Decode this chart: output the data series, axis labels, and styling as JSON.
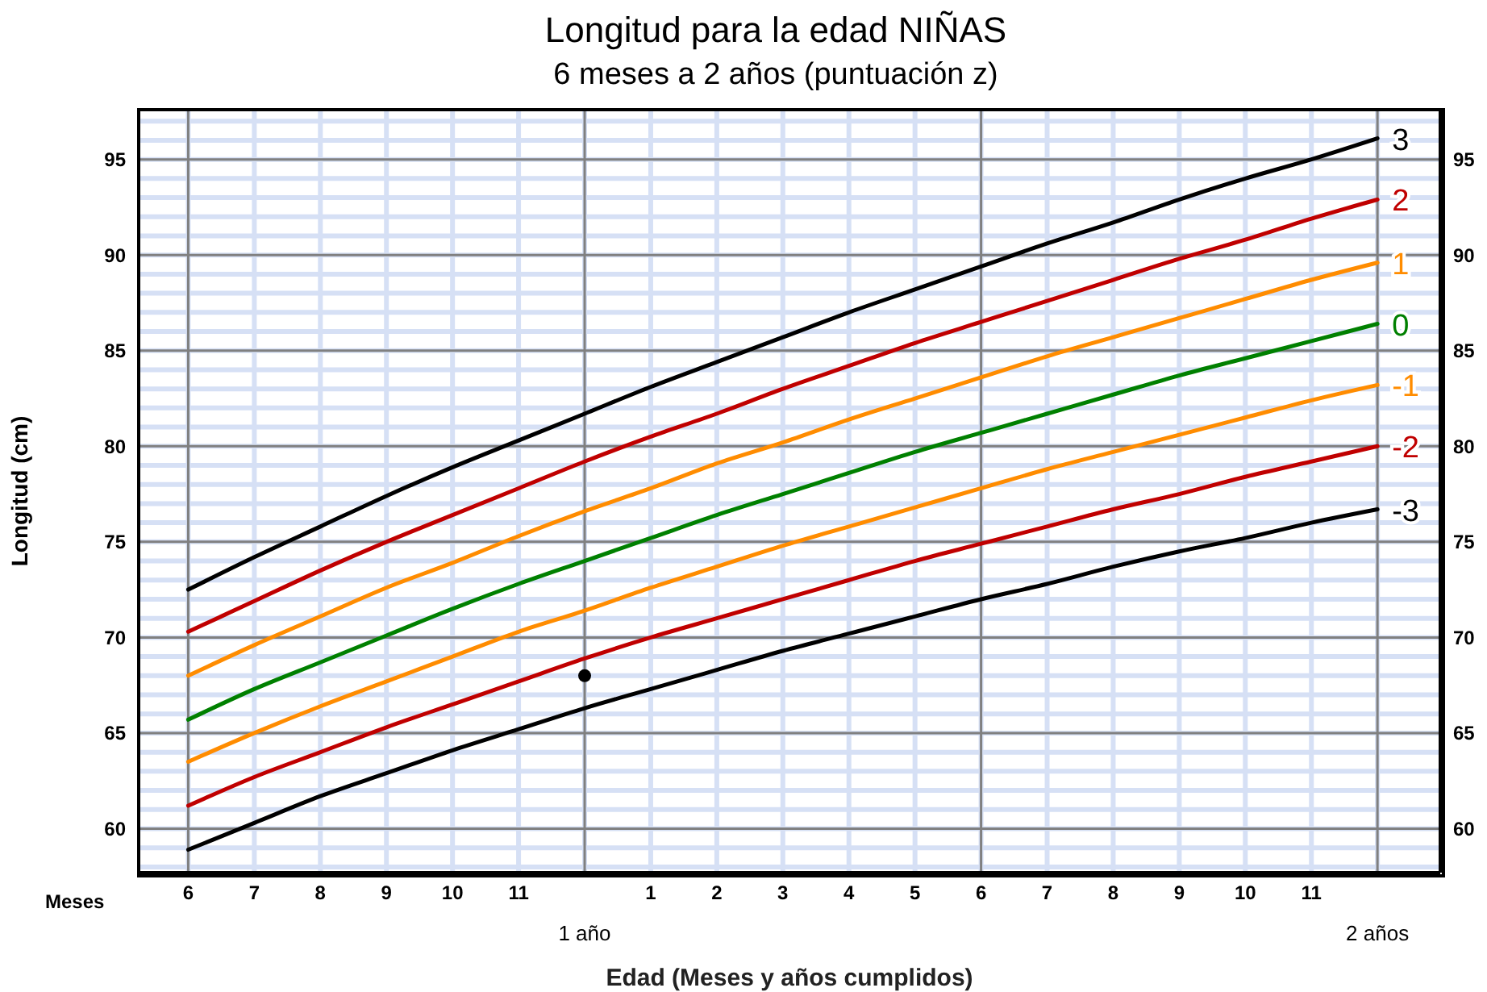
{
  "chart_data": {
    "type": "line",
    "title": "Longitud para la edad NIÑAS",
    "subtitle": "6 meses a 2 años (puntuación z)",
    "xlabel": "Edad (Meses y años cumplidos)",
    "ylabel": "Longitud (cm)",
    "annotations": [
      "Meses",
      "1 año",
      "2 años"
    ],
    "categories": [
      "6",
      "7",
      "8",
      "9",
      "10",
      "11",
      null,
      "1",
      "2",
      "3",
      "4",
      "5",
      "6",
      "7",
      "8",
      "9",
      "10",
      "11",
      null
    ],
    "series": [
      {
        "name": "3",
        "color": "#000000",
        "values": [
          72.5,
          74.2,
          75.8,
          77.4,
          78.9,
          80.3,
          81.7,
          83.1,
          84.4,
          85.7,
          87.0,
          88.2,
          89.4,
          90.6,
          91.7,
          92.9,
          94.0,
          95.0,
          96.1
        ]
      },
      {
        "name": "2",
        "color": "#c00000",
        "values": [
          70.3,
          71.9,
          73.5,
          75.0,
          76.4,
          77.8,
          79.2,
          80.5,
          81.7,
          83.0,
          84.2,
          85.4,
          86.5,
          87.6,
          88.7,
          89.8,
          90.8,
          91.9,
          92.9
        ]
      },
      {
        "name": "1",
        "color": "#ff8c00",
        "values": [
          68.0,
          69.6,
          71.1,
          72.6,
          73.9,
          75.3,
          76.6,
          77.8,
          79.1,
          80.2,
          81.4,
          82.5,
          83.6,
          84.7,
          85.7,
          86.7,
          87.7,
          88.7,
          89.6
        ]
      },
      {
        "name": "0",
        "color": "#008000",
        "values": [
          65.7,
          67.3,
          68.7,
          70.1,
          71.5,
          72.8,
          74.0,
          75.2,
          76.4,
          77.5,
          78.6,
          79.7,
          80.7,
          81.7,
          82.7,
          83.7,
          84.6,
          85.5,
          86.4
        ]
      },
      {
        "name": "-1",
        "color": "#ff8c00",
        "values": [
          63.5,
          65.0,
          66.4,
          67.7,
          69.0,
          70.3,
          71.4,
          72.6,
          73.7,
          74.8,
          75.8,
          76.8,
          77.8,
          78.8,
          79.7,
          80.6,
          81.5,
          82.4,
          83.2
        ]
      },
      {
        "name": "-2",
        "color": "#c00000",
        "values": [
          61.2,
          62.7,
          64.0,
          65.3,
          66.5,
          67.7,
          68.9,
          70.0,
          71.0,
          72.0,
          73.0,
          74.0,
          74.9,
          75.8,
          76.7,
          77.5,
          78.4,
          79.2,
          80.0
        ]
      },
      {
        "name": "-3",
        "color": "#000000",
        "values": [
          58.9,
          60.3,
          61.7,
          62.9,
          64.1,
          65.2,
          66.3,
          67.3,
          68.3,
          69.3,
          70.2,
          71.1,
          72.0,
          72.8,
          73.7,
          74.5,
          75.2,
          76.0,
          76.7
        ]
      },
      {
        "type": "scatter",
        "color": "#000000",
        "marker": "circle",
        "values": [
          null,
          null,
          null,
          null,
          null,
          null,
          68,
          null,
          null,
          null,
          null,
          null,
          null,
          null,
          null,
          null,
          null,
          null,
          null
        ]
      }
    ],
    "ylim": [
      57.7,
      97.6
    ],
    "yticks": [
      {
        "value": 58,
        "label": null
      },
      {
        "value": 59,
        "label": null
      },
      60,
      {
        "value": 61,
        "label": null
      },
      {
        "value": 62,
        "label": null
      },
      {
        "value": 63,
        "label": null
      },
      {
        "value": 64,
        "label": null
      },
      65,
      {
        "value": 66,
        "label": null
      },
      {
        "value": 67,
        "label": null
      },
      {
        "value": 68,
        "label": null
      },
      {
        "value": 69,
        "label": null
      },
      70,
      {
        "value": 71,
        "label": null
      },
      {
        "value": 72,
        "label": null
      },
      {
        "value": 73,
        "label": null
      },
      {
        "value": 74,
        "label": null
      },
      75,
      {
        "value": 76,
        "label": null
      },
      {
        "value": 77,
        "label": null
      },
      {
        "value": 78,
        "label": null
      },
      {
        "value": 79,
        "label": null
      },
      80,
      {
        "value": 81,
        "label": null
      },
      {
        "value": 82,
        "label": null
      },
      {
        "value": 83,
        "label": null
      },
      {
        "value": 84,
        "label": null
      },
      85,
      {
        "value": 86,
        "label": null
      },
      {
        "value": 87,
        "label": null
      },
      {
        "value": 88,
        "label": null
      },
      {
        "value": 89,
        "label": null
      },
      90,
      {
        "value": 91,
        "label": null
      },
      {
        "value": 92,
        "label": null
      },
      {
        "value": 93,
        "label": null
      },
      {
        "value": 94,
        "label": null
      },
      95,
      {
        "value": 96,
        "label": null
      },
      {
        "value": 97,
        "label": null
      }
    ],
    "y2lim": [
      57.7,
      97.6
    ],
    "y2ticks": [
      60,
      65,
      70,
      75,
      80,
      85,
      90,
      95
    ],
    "grid": true,
    "marker": "none",
    "line_style": "solid"
  }
}
